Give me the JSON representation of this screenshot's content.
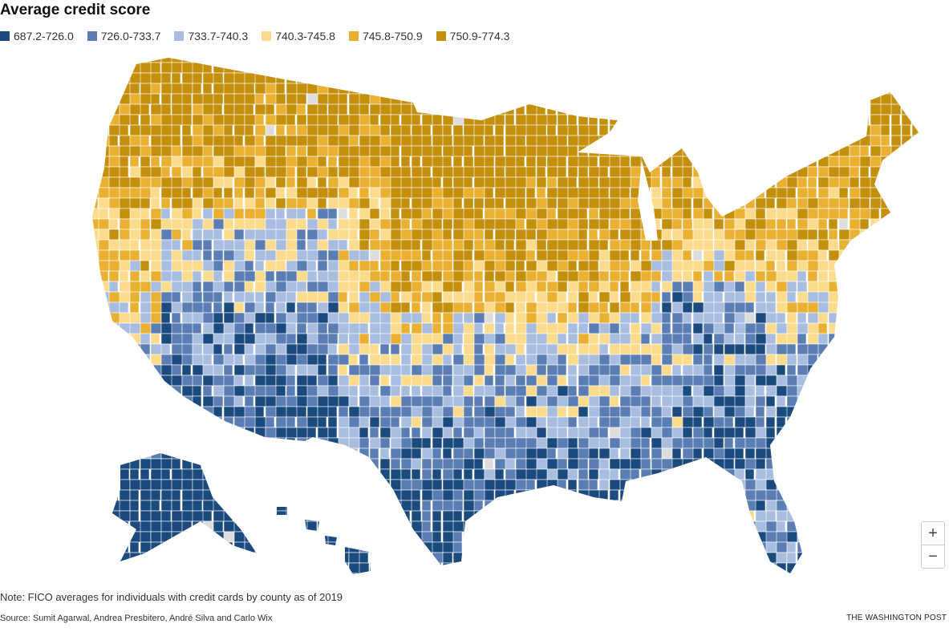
{
  "title": "Average credit score",
  "legend": [
    {
      "label": "687.2-726.0",
      "color": "#1a4a7e"
    },
    {
      "label": "726.0-733.7",
      "color": "#5a7db3"
    },
    {
      "label": "733.7-740.3",
      "color": "#a8bde0"
    },
    {
      "label": "740.3-745.8",
      "color": "#fcdc8c"
    },
    {
      "label": "745.8-750.9",
      "color": "#eab032"
    },
    {
      "label": "750.9-774.3",
      "color": "#c48f0a"
    }
  ],
  "no_data_color": "#dddddd",
  "zoom": {
    "in_label": "+",
    "out_label": "−"
  },
  "note": "Note: FICO averages for individuals with credit cards by county as of 2019",
  "source": "Source: Sumit Agarwal, Andrea Presbitero, André Silva and Carlo Wix",
  "brand": "THE WASHINGTON POST"
}
